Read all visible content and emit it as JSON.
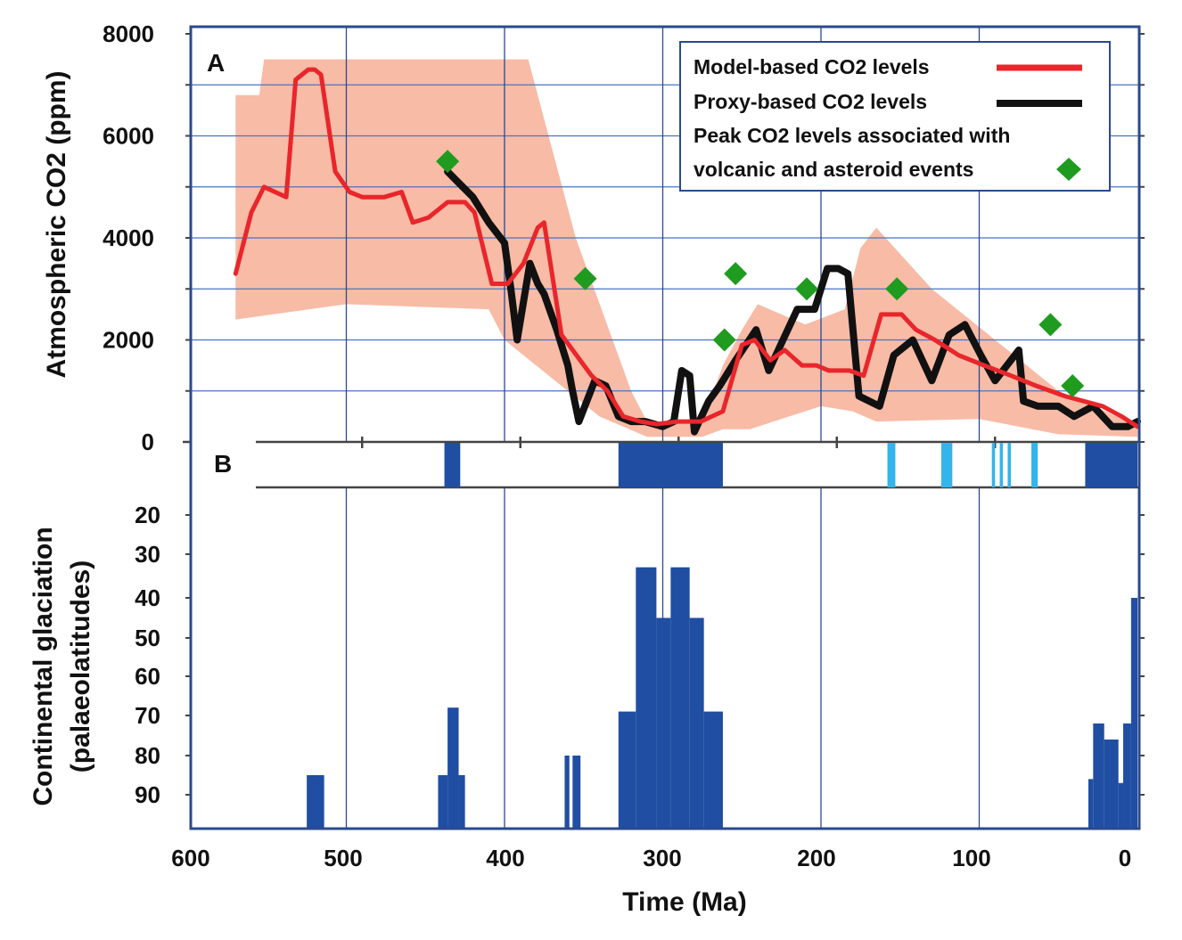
{
  "chart_data": {
    "type": "line",
    "x_unit": "Ma",
    "xlabel": "Time (Ma)",
    "xlim": [
      600,
      0
    ],
    "x_ticks": [
      "600",
      "500",
      "400",
      "300",
      "200",
      "100",
      "0"
    ],
    "panel_a": {
      "label": "A",
      "ylabel": "Atmospheric CO2 (ppm)",
      "ylim": [
        0,
        8000
      ],
      "y_ticks": [
        "0",
        "2000",
        "4000",
        "6000",
        "8000"
      ],
      "grid": true,
      "legend_position": "top-right",
      "legend": [
        {
          "label": "Model-based  CO2 levels",
          "color": "#e8262b",
          "kind": "line"
        },
        {
          "label": "Proxy-based  CO2 levels",
          "color": "#111111",
          "kind": "line"
        },
        {
          "label_lines": [
            "Peak CO2 levels associated  with",
            "volcanic and asteroid  events"
          ],
          "color": "#1f9b1f",
          "kind": "diamond"
        }
      ],
      "uncertainty_band": {
        "color": "#f8bba6",
        "upper": [
          [
            570,
            6800
          ],
          [
            555,
            6800
          ],
          [
            552,
            7500
          ],
          [
            385,
            7500
          ],
          [
            355,
            4000
          ],
          [
            320,
            1000
          ],
          [
            310,
            400
          ],
          [
            275,
            400
          ],
          [
            262,
            1500
          ],
          [
            250,
            2200
          ],
          [
            240,
            2700
          ],
          [
            210,
            2300
          ],
          [
            185,
            2600
          ],
          [
            175,
            3800
          ],
          [
            165,
            4200
          ],
          [
            130,
            3000
          ],
          [
            90,
            2000
          ],
          [
            50,
            1000
          ],
          [
            20,
            600
          ],
          [
            0,
            300
          ]
        ],
        "lower": [
          [
            0,
            100
          ],
          [
            50,
            150
          ],
          [
            100,
            450
          ],
          [
            165,
            400
          ],
          [
            180,
            600
          ],
          [
            200,
            700
          ],
          [
            245,
            250
          ],
          [
            262,
            250
          ],
          [
            275,
            100
          ],
          [
            310,
            100
          ],
          [
            340,
            500
          ],
          [
            400,
            2000
          ],
          [
            410,
            2600
          ],
          [
            500,
            2700
          ],
          [
            570,
            2400
          ]
        ]
      },
      "series": [
        {
          "name": "Model-based  CO2 levels",
          "color": "#e8262b",
          "x": [
            570,
            560,
            552,
            545,
            538,
            532,
            524,
            520,
            516,
            507,
            498,
            490,
            476,
            465,
            458,
            448,
            436,
            425,
            419,
            408,
            398,
            388,
            379,
            375,
            364,
            345,
            335,
            325,
            314,
            304,
            290,
            276,
            262,
            250,
            242,
            232,
            223,
            212,
            203,
            195,
            182,
            173,
            162,
            149,
            140,
            128,
            113,
            97,
            80,
            64,
            46,
            22,
            10,
            0
          ],
          "y": [
            3300,
            4500,
            5000,
            4900,
            4800,
            7100,
            7300,
            7300,
            7200,
            5300,
            4900,
            4800,
            4800,
            4900,
            4300,
            4400,
            4700,
            4700,
            4500,
            3100,
            3100,
            3500,
            4200,
            4300,
            2100,
            1300,
            1000,
            500,
            400,
            350,
            400,
            400,
            600,
            1900,
            2000,
            1600,
            1800,
            1500,
            1500,
            1400,
            1400,
            1300,
            2500,
            2500,
            2200,
            2000,
            1700,
            1500,
            1300,
            1100,
            900,
            700,
            500,
            300
          ]
        },
        {
          "name": "Proxy-based  CO2 levels",
          "color": "#111111",
          "x": [
            436,
            420,
            410,
            400,
            396,
            392,
            384,
            379,
            375,
            367,
            360,
            357,
            353,
            343,
            336,
            328,
            320,
            311,
            300,
            293,
            288,
            283,
            280,
            271,
            264,
            254,
            241,
            233,
            224,
            215,
            204,
            196,
            189,
            183,
            176,
            163,
            154,
            142,
            130,
            119,
            109,
            99,
            90,
            75,
            72,
            63,
            50,
            40,
            28,
            16,
            6,
            0
          ],
          "y": [
            5300,
            4800,
            4300,
            3900,
            3000,
            2000,
            3500,
            3100,
            2900,
            2200,
            1500,
            1000,
            400,
            1200,
            1100,
            500,
            400,
            400,
            300,
            400,
            1400,
            1300,
            200,
            800,
            1100,
            1600,
            2200,
            1400,
            2000,
            2600,
            2600,
            3400,
            3400,
            3300,
            900,
            700,
            1700,
            2000,
            1200,
            2100,
            2300,
            1700,
            1200,
            1800,
            800,
            700,
            700,
            500,
            700,
            300,
            300,
            400
          ]
        }
      ],
      "peak_events": [
        {
          "x": 436,
          "y": 5500
        },
        {
          "x": 349,
          "y": 3200
        },
        {
          "x": 254,
          "y": 3300
        },
        {
          "x": 261,
          "y": 2000
        },
        {
          "x": 209,
          "y": 3000
        },
        {
          "x": 152,
          "y": 3000
        },
        {
          "x": 55,
          "y": 2300
        },
        {
          "x": 41,
          "y": 1100
        }
      ]
    },
    "panel_b": {
      "label": "B",
      "glaciation_bands": [
        {
          "from": 438,
          "to": 428,
          "color": "#1f4ea3"
        },
        {
          "from": 328,
          "to": 262,
          "color": "#1f4ea3"
        },
        {
          "from": 158,
          "to": 153,
          "color": "#33b4ea"
        },
        {
          "from": 124,
          "to": 117,
          "color": "#33b4ea"
        },
        {
          "from": 92,
          "to": 90,
          "color": "#33b4ea"
        },
        {
          "from": 87,
          "to": 85,
          "color": "#33b4ea"
        },
        {
          "from": 82,
          "to": 80,
          "color": "#33b4ea"
        },
        {
          "from": 67,
          "to": 63,
          "color": "#33b4ea"
        },
        {
          "from": 33,
          "to": 0,
          "color": "#1f4ea3"
        }
      ]
    },
    "panel_c": {
      "ylabel_lines": [
        "Continental glaciation",
        "(palaeolatitudes)"
      ],
      "y_ticks": [
        "20",
        "30",
        "40",
        "50",
        "60",
        "70",
        "80",
        "90"
      ],
      "bar_color": "#1f4ea3",
      "bars": [
        {
          "from": 525,
          "to": 514,
          "lat": 85
        },
        {
          "from": 442,
          "to": 436,
          "lat": 85
        },
        {
          "from": 436,
          "to": 429,
          "lat": 68
        },
        {
          "from": 429,
          "to": 425,
          "lat": 85
        },
        {
          "from": 362,
          "to": 359,
          "lat": 80
        },
        {
          "from": 357,
          "to": 352,
          "lat": 80
        },
        {
          "from": 328,
          "to": 317,
          "lat": 69
        },
        {
          "from": 317,
          "to": 304,
          "lat": 33
        },
        {
          "from": 304,
          "to": 295,
          "lat": 45
        },
        {
          "from": 295,
          "to": 283,
          "lat": 33
        },
        {
          "from": 283,
          "to": 274,
          "lat": 45
        },
        {
          "from": 274,
          "to": 262,
          "lat": 69
        },
        {
          "from": 31,
          "to": 28,
          "lat": 86
        },
        {
          "from": 28,
          "to": 21,
          "lat": 72
        },
        {
          "from": 21,
          "to": 12,
          "lat": 76
        },
        {
          "from": 12,
          "to": 9,
          "lat": 87
        },
        {
          "from": 9,
          "to": 4,
          "lat": 72
        },
        {
          "from": 4,
          "to": 0,
          "lat": 40
        }
      ]
    }
  }
}
